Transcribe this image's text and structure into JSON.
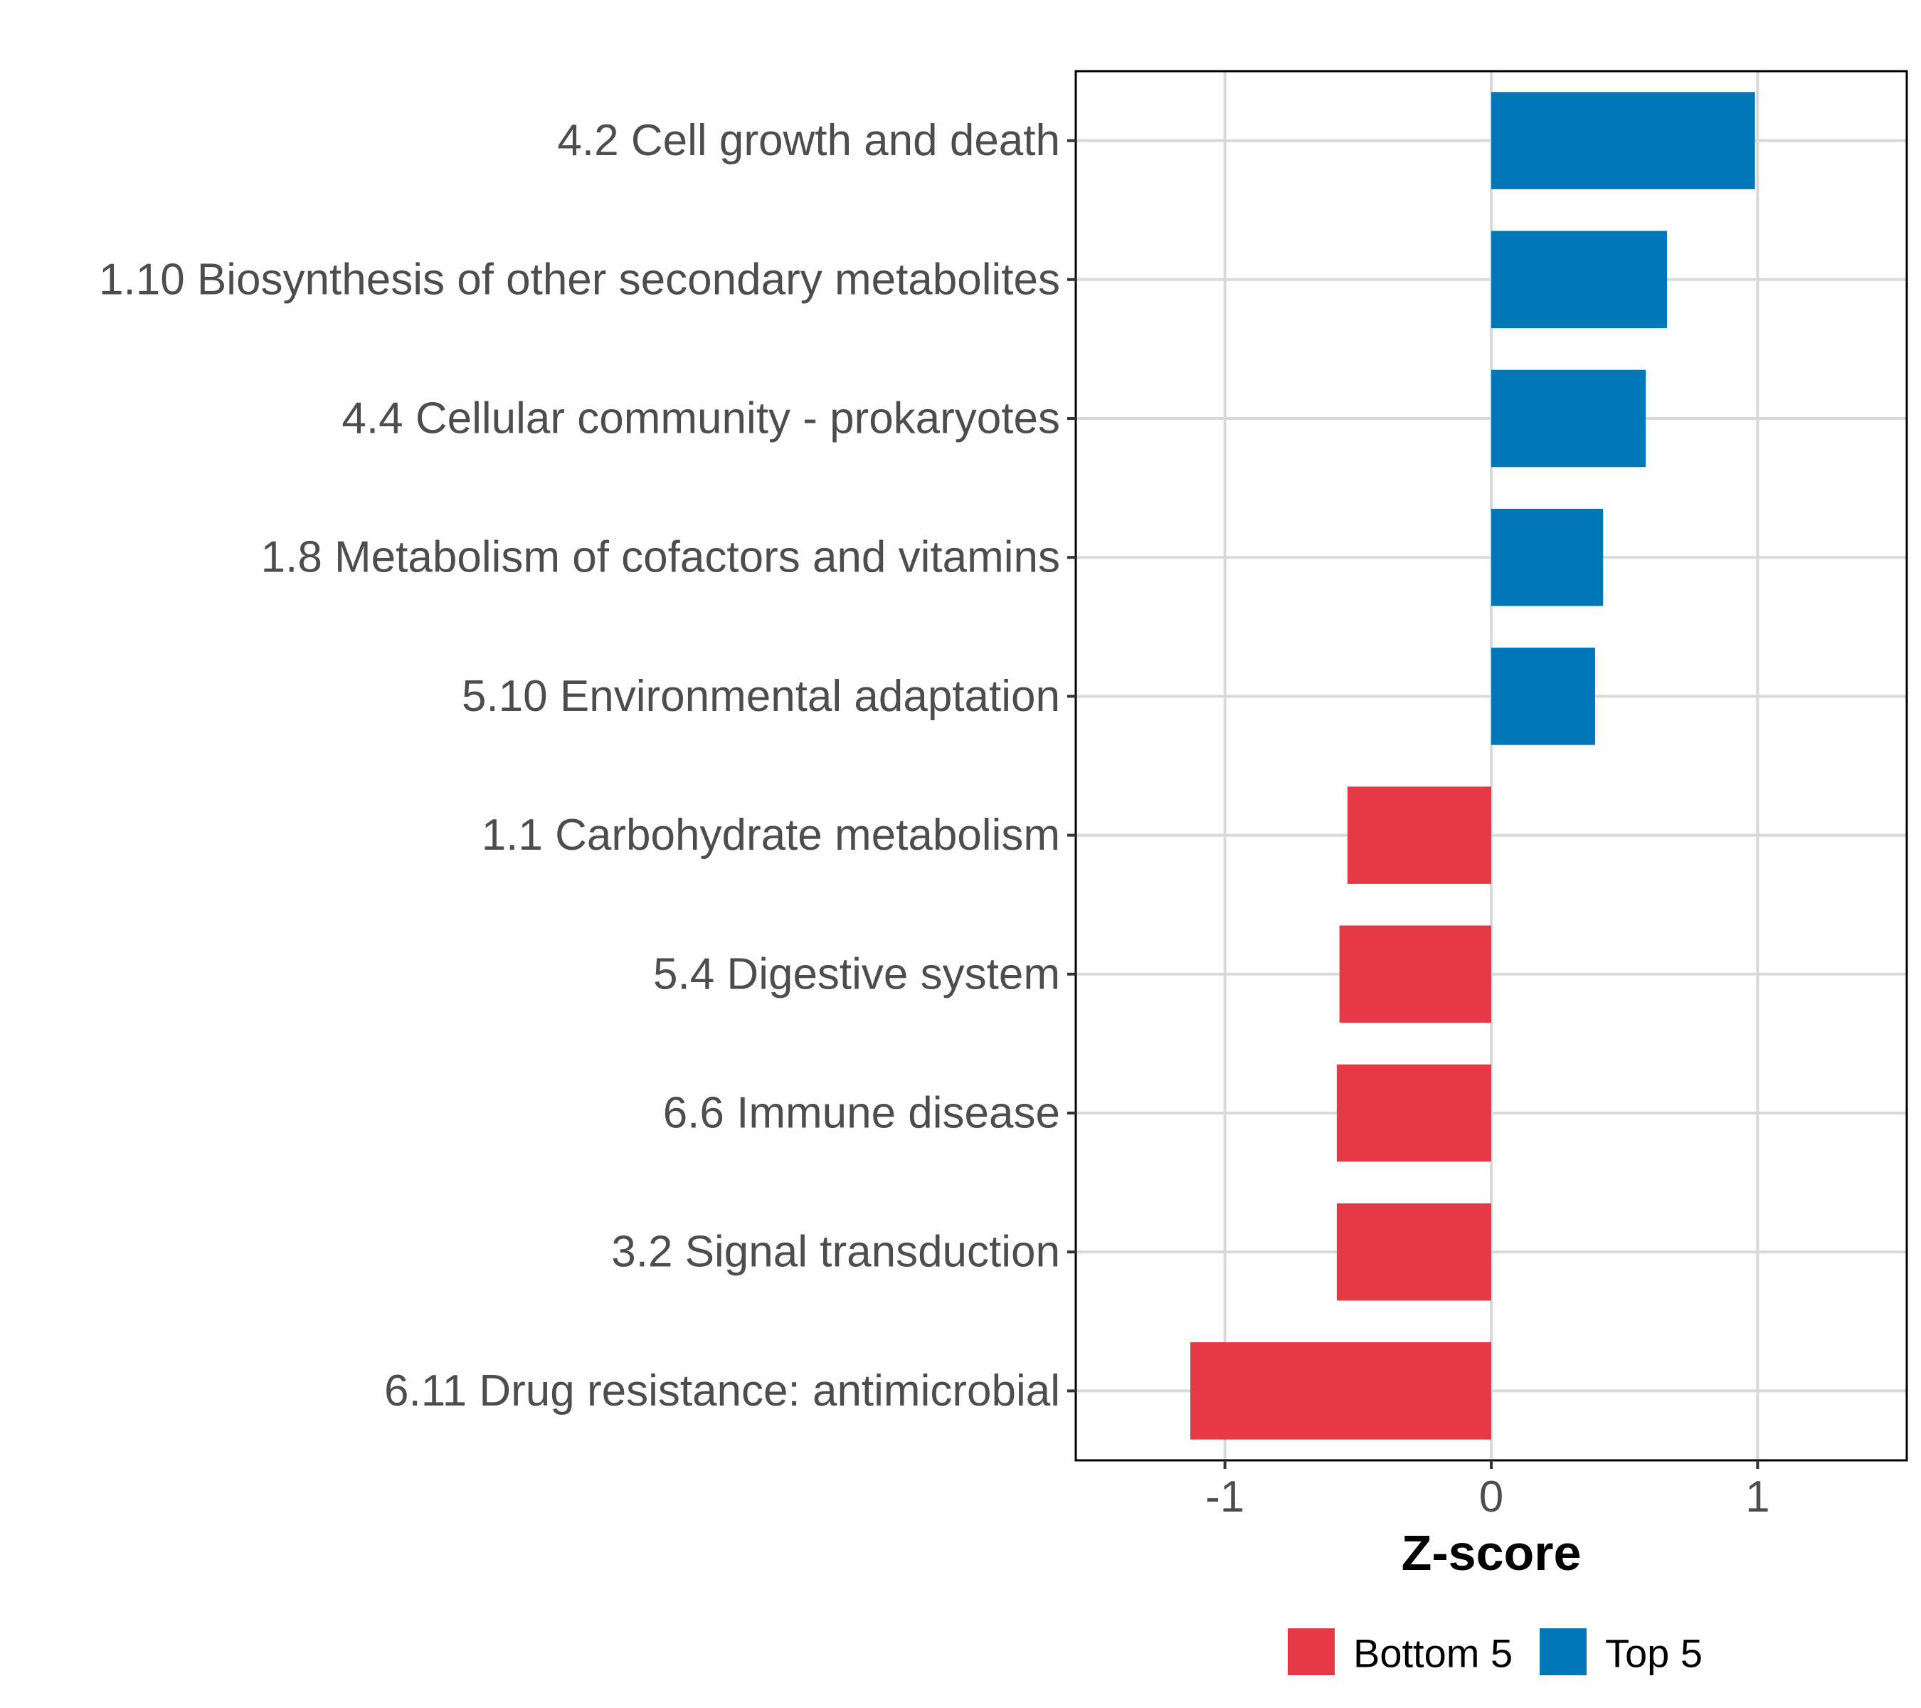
{
  "chart_data": {
    "type": "bar",
    "orientation": "horizontal",
    "categories": [
      "4.2 Cell growth and death",
      "1.10 Biosynthesis of other secondary metabolites",
      "4.4 Cellular community - prokaryotes",
      "1.8 Metabolism of cofactors and vitamins",
      "5.10 Environmental adaptation",
      "1.1 Carbohydrate metabolism",
      "5.4 Digestive system",
      "6.6 Immune disease",
      "3.2 Signal transduction",
      "6.11 Drug resistance: antimicrobial"
    ],
    "values": [
      0.99,
      0.66,
      0.58,
      0.42,
      0.39,
      -0.54,
      -0.57,
      -0.58,
      -0.58,
      -1.13
    ],
    "groups": [
      "Top 5",
      "Top 5",
      "Top 5",
      "Top 5",
      "Top 5",
      "Bottom 5",
      "Bottom 5",
      "Bottom 5",
      "Bottom 5",
      "Bottom 5"
    ],
    "xlabel": "Z-score",
    "ylabel": "",
    "xlim": [
      -1.56,
      1.56
    ],
    "xticks": [
      -1,
      0,
      1
    ],
    "xtick_labels": [
      "-1",
      "0",
      "1"
    ],
    "grid": true,
    "legend": {
      "position": "bottom",
      "items": [
        {
          "label": "Bottom 5",
          "color": "#e63946"
        },
        {
          "label": "Top 5",
          "color": "#0077b6"
        }
      ]
    }
  }
}
